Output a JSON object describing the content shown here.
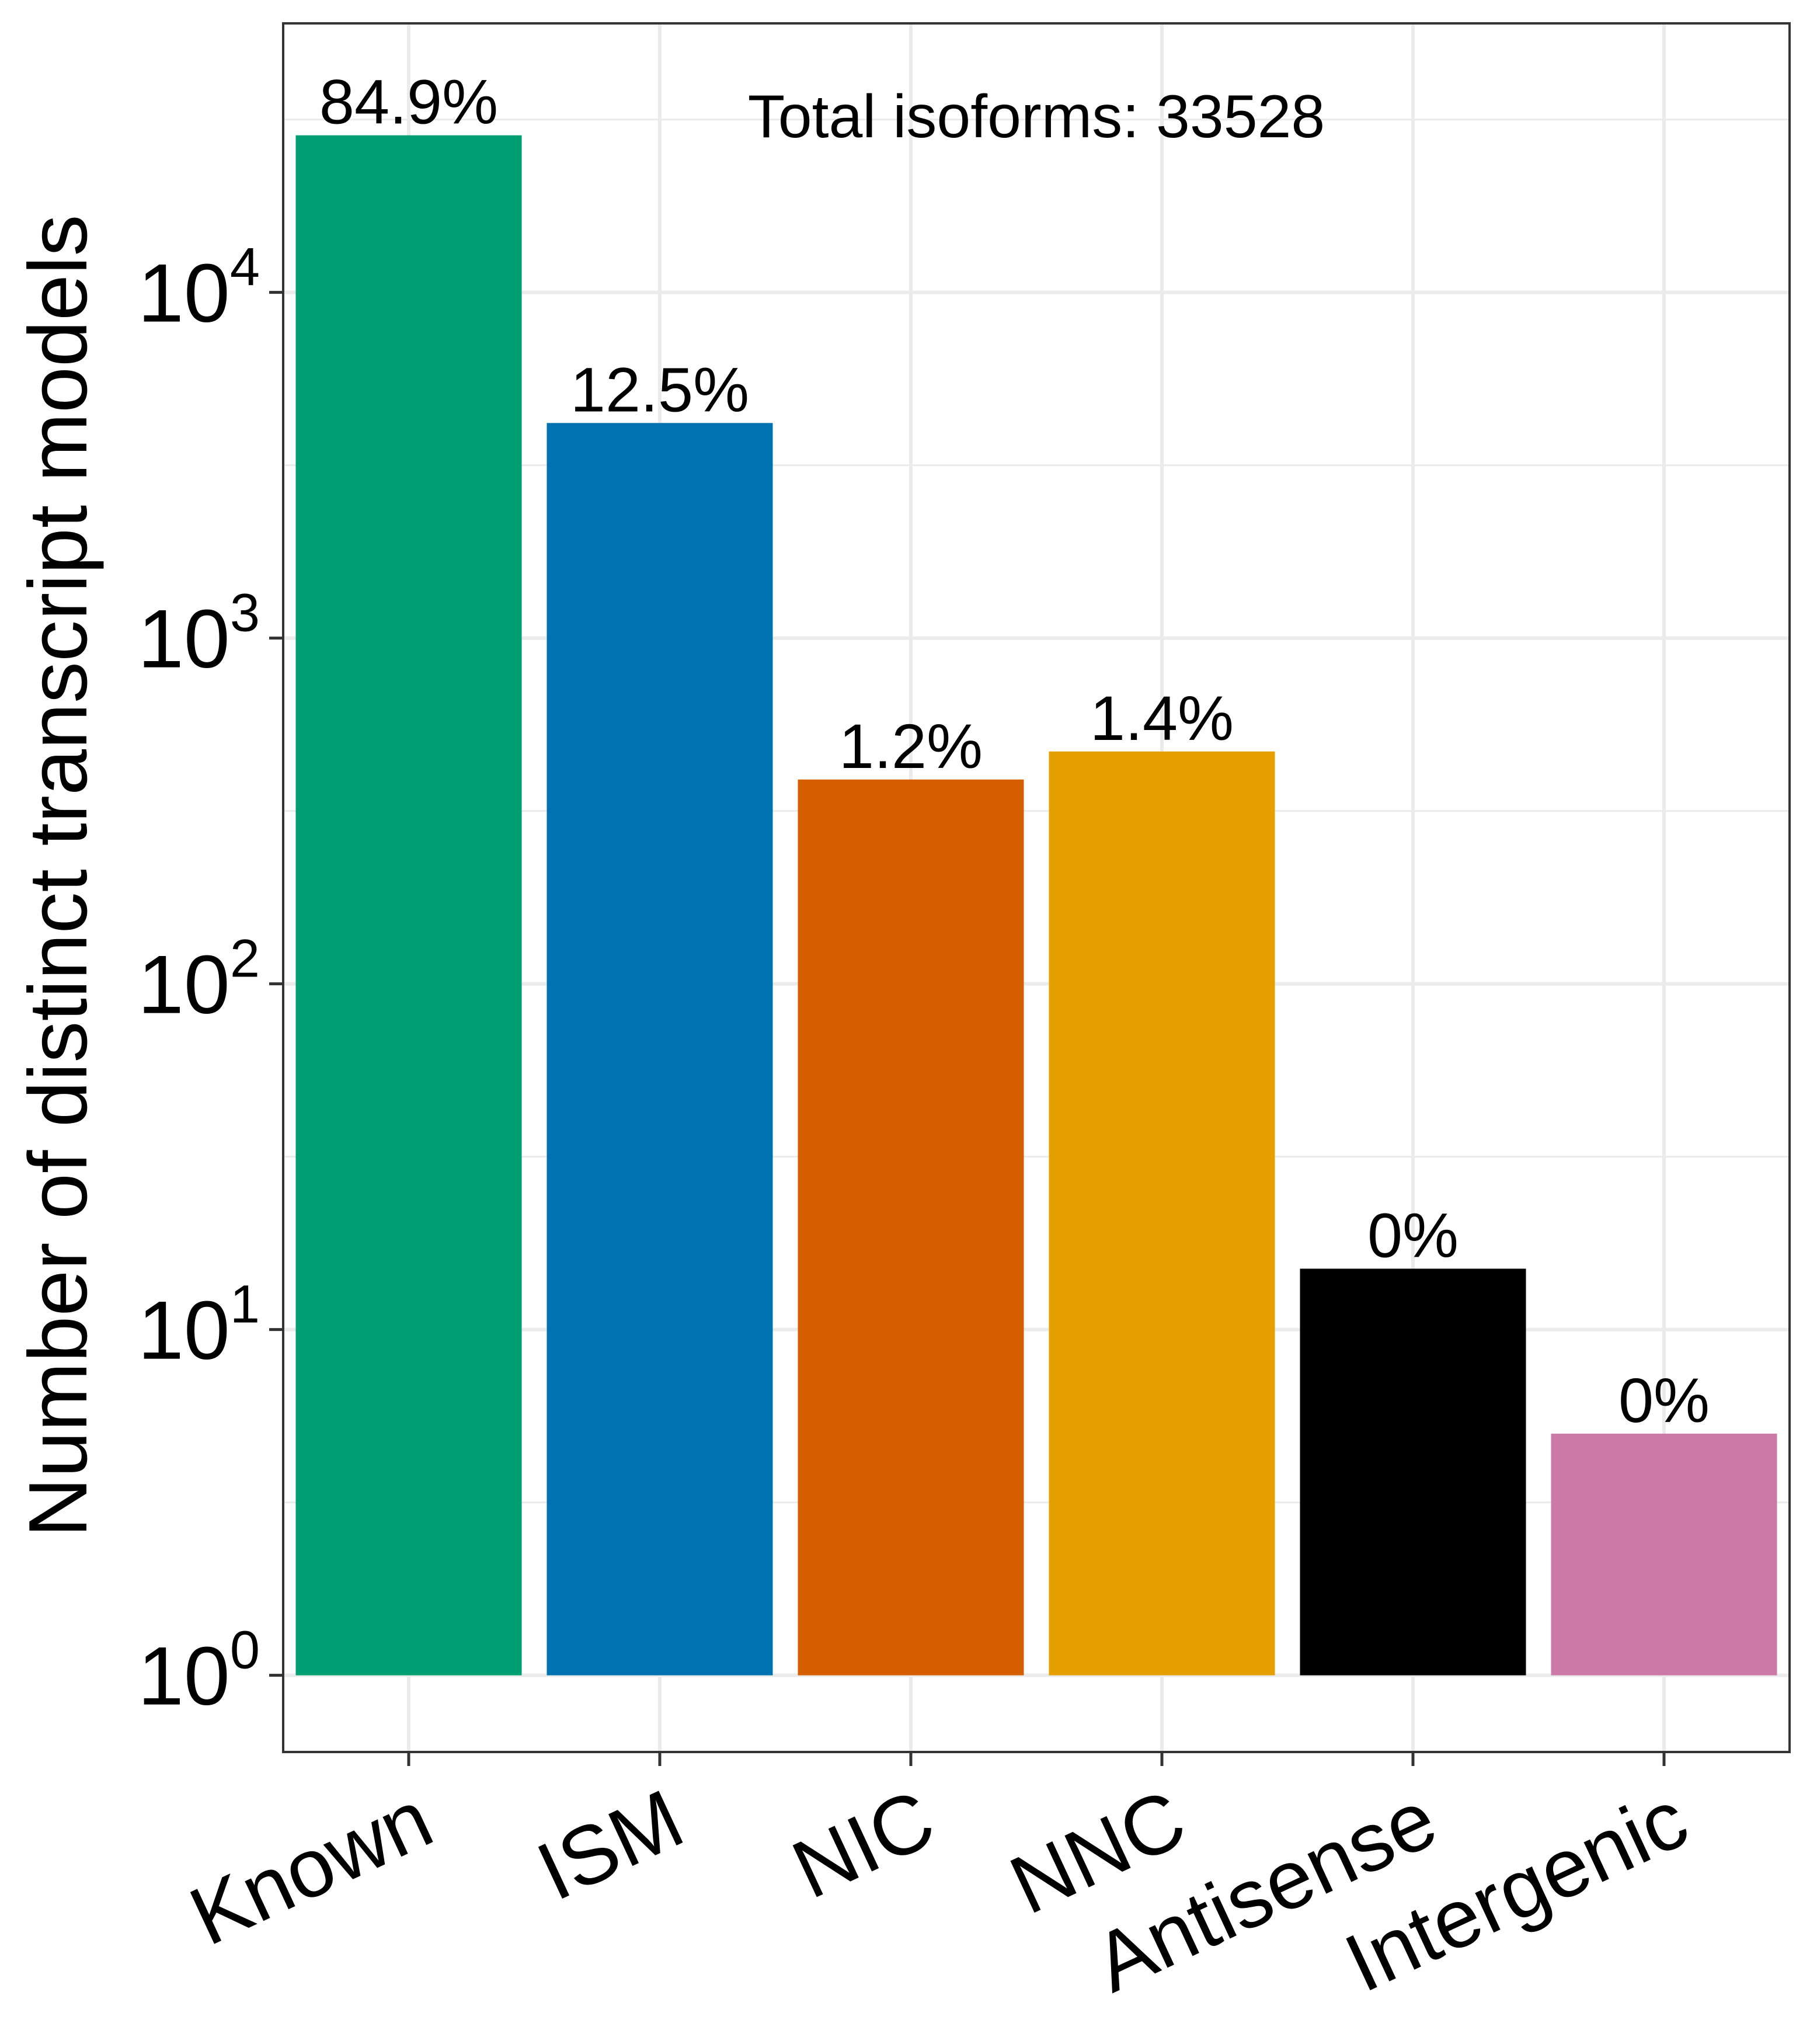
{
  "chart_data": {
    "type": "bar",
    "title": "",
    "xlabel": "",
    "ylabel": "Number of distinct transcript models",
    "y_scale": "log10",
    "ylim": [
      0.6,
      60000
    ],
    "y_ticks": [
      {
        "value": 1,
        "base": "10",
        "exp": "0"
      },
      {
        "value": 10,
        "base": "10",
        "exp": "1"
      },
      {
        "value": 100,
        "base": "10",
        "exp": "2"
      },
      {
        "value": 1000,
        "base": "10",
        "exp": "3"
      },
      {
        "value": 10000,
        "base": "10",
        "exp": "4"
      }
    ],
    "grid": true,
    "annotation": "Total isoforms: 33528",
    "categories": [
      "Known",
      "ISM",
      "NIC",
      "NNC",
      "Antisense",
      "Intergenic"
    ],
    "values": [
      28470,
      4190,
      390,
      470,
      15,
      5
    ],
    "data_labels": [
      "84.9%",
      "12.5%",
      "1.2%",
      "1.4%",
      "0%",
      "0%"
    ],
    "colors": [
      "#009E73",
      "#0072B2",
      "#D55E00",
      "#E69F00",
      "#000000",
      "#CC79A7"
    ]
  }
}
